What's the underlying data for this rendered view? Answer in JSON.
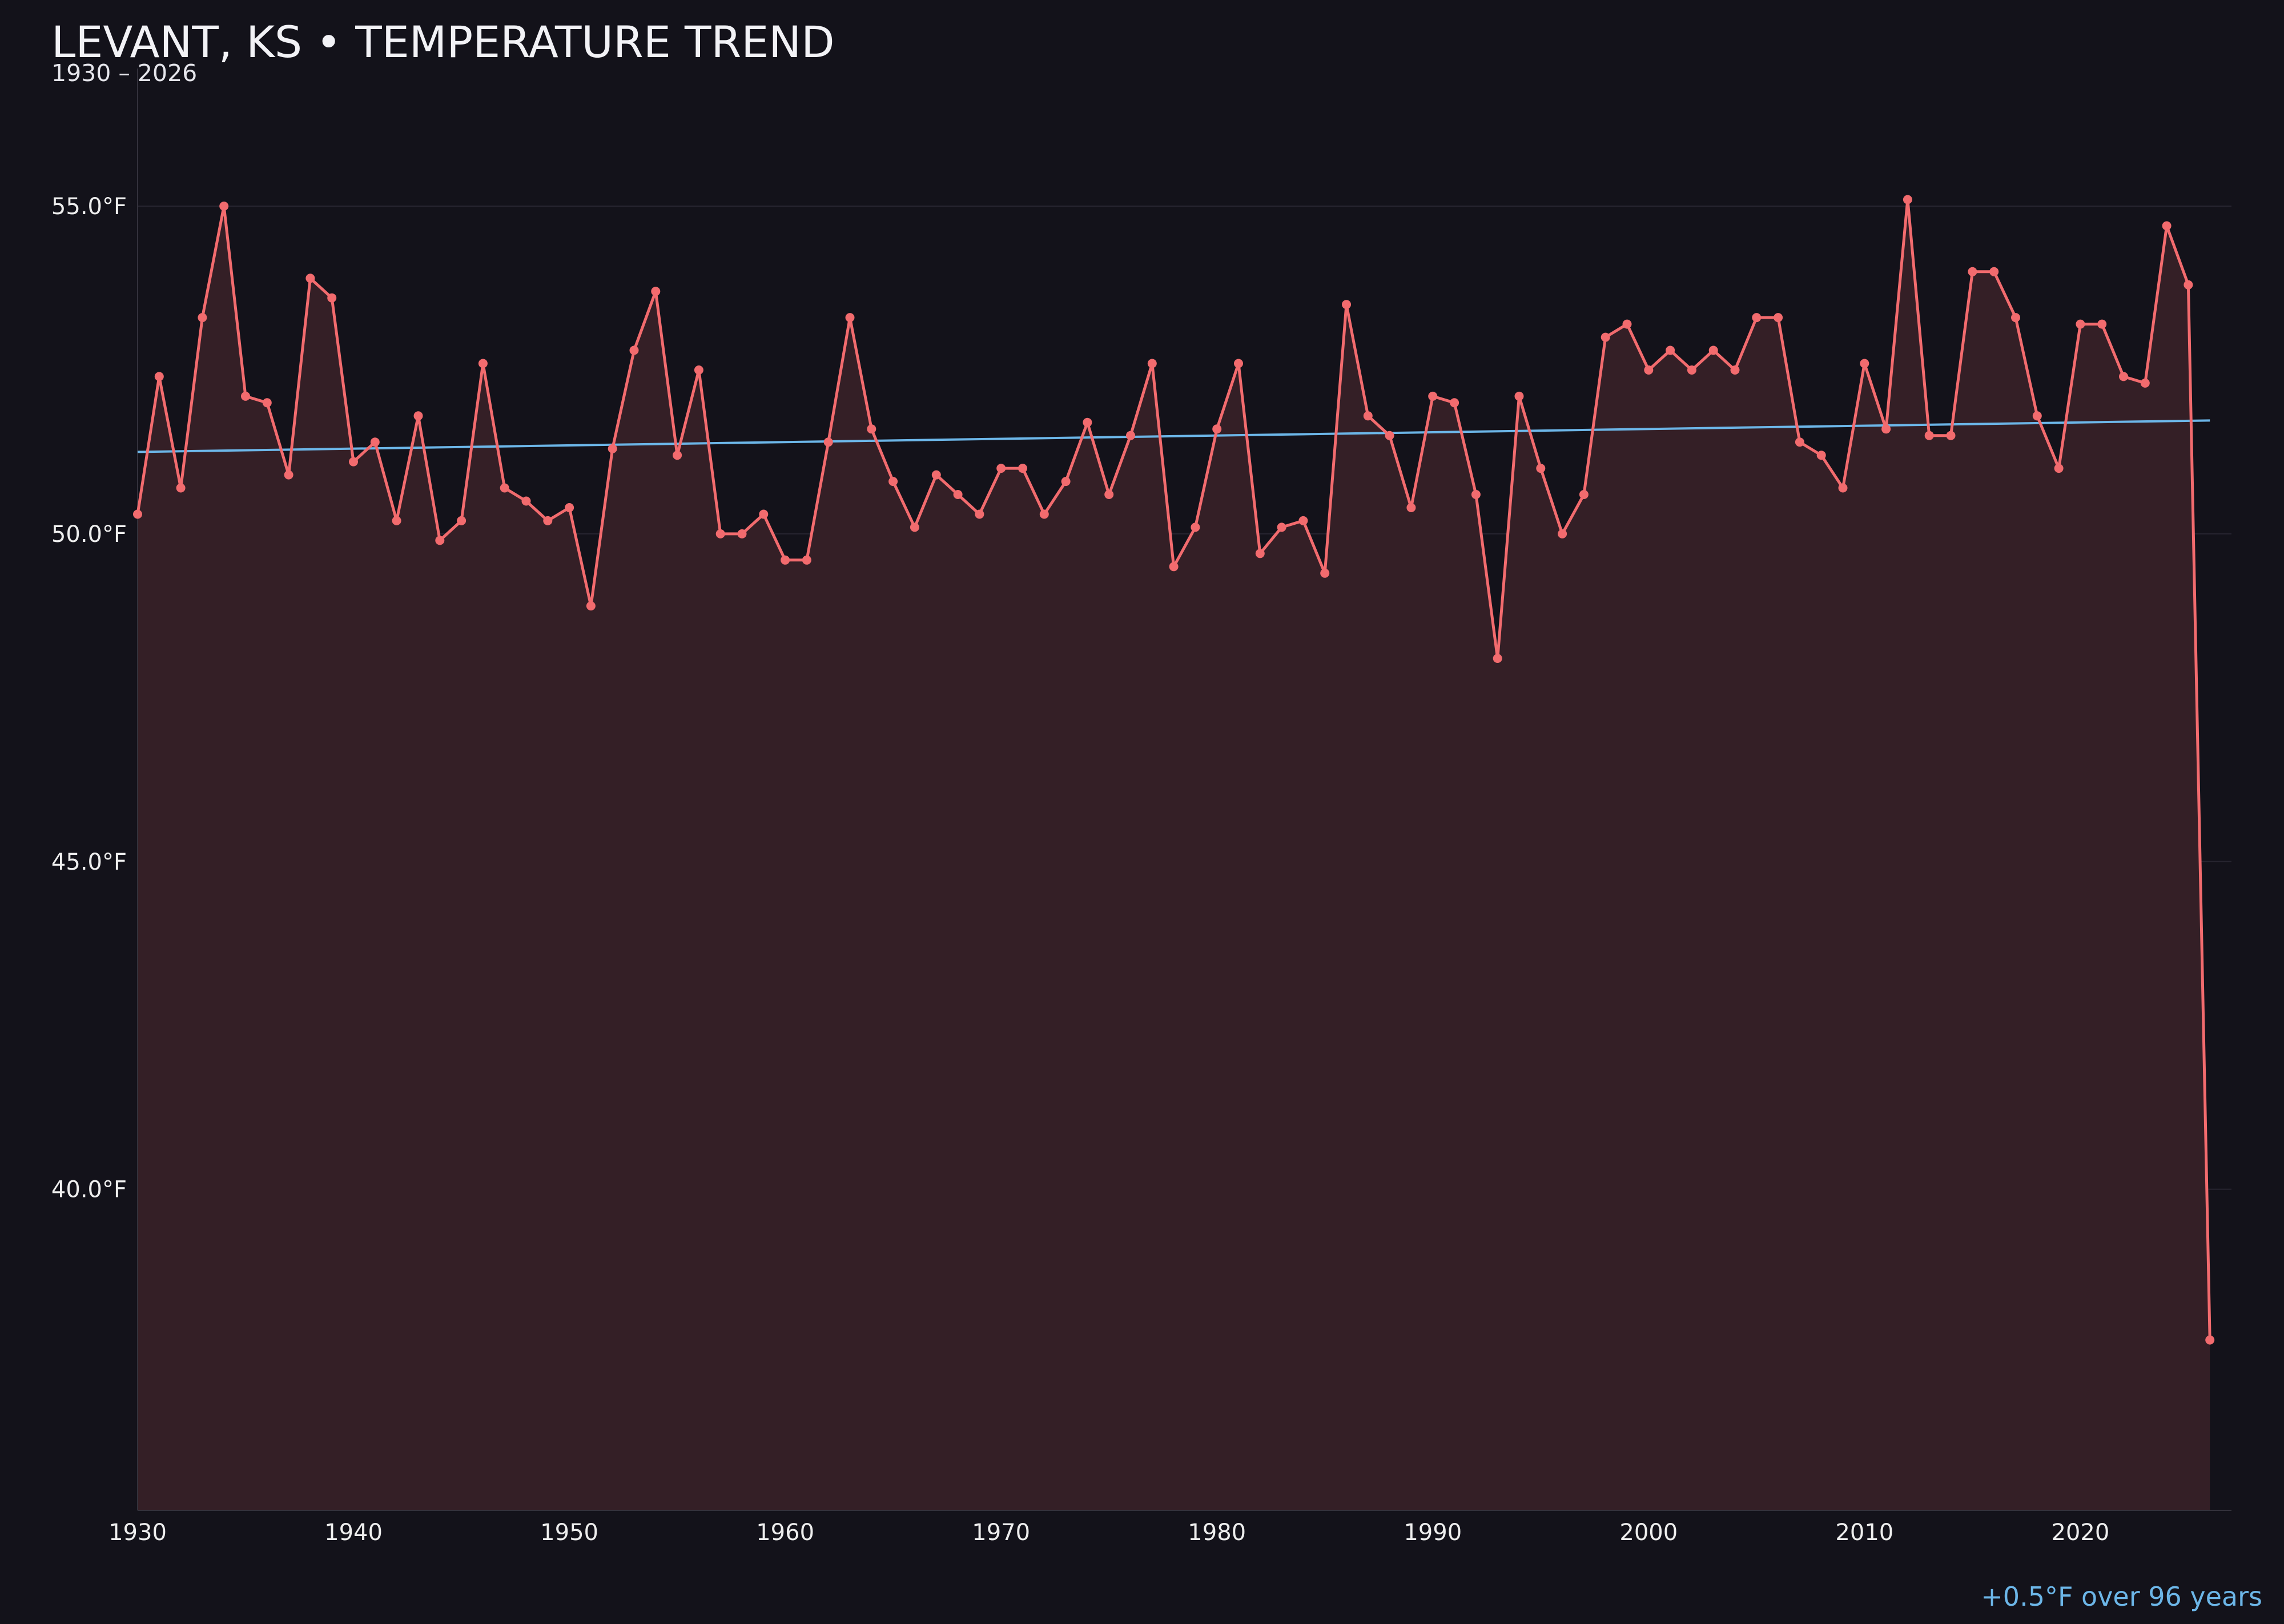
{
  "colors": {
    "background": "#13121a",
    "series": "#f26b6e",
    "area_fill": "#341f26",
    "trend": "#6cb6e8",
    "grid": "#272530",
    "text": "#eeeeee"
  },
  "chart_data": {
    "type": "line",
    "title": "LEVANT, KS • TEMPERATURE TREND",
    "subtitle": "1930 – 2026",
    "xlabel": "",
    "ylabel": "",
    "xlim": [
      1930,
      2027
    ],
    "ylim": [
      35.1,
      57.1
    ],
    "grid": true,
    "x_ticks": [
      1930,
      1940,
      1950,
      1960,
      1970,
      1980,
      1990,
      2000,
      2010,
      2020
    ],
    "y_ticks": [
      40,
      45,
      50,
      55
    ],
    "y_tick_labels": [
      "40.0°F",
      "45.0°F",
      "50.0°F",
      "55.0°F"
    ],
    "series": [
      {
        "x": [
          1930,
          1931,
          1932,
          1933,
          1934,
          1935,
          1936,
          1937,
          1938,
          1939,
          1940,
          1941,
          1942,
          1943,
          1944,
          1945,
          1946,
          1947,
          1948,
          1949,
          1950,
          1951,
          1952,
          1953,
          1954,
          1955,
          1956,
          1957,
          1958,
          1959,
          1960,
          1961,
          1962,
          1963,
          1964,
          1965,
          1966,
          1967,
          1968,
          1969,
          1970,
          1971,
          1972,
          1973,
          1974,
          1975,
          1976,
          1977,
          1978,
          1979,
          1980,
          1981,
          1982,
          1983,
          1984,
          1985,
          1986,
          1987,
          1988,
          1989,
          1990,
          1991,
          1992,
          1993,
          1994,
          1995,
          1996,
          1997,
          1998,
          1999,
          2000,
          2001,
          2002,
          2003,
          2004,
          2005,
          2006,
          2007,
          2008,
          2009,
          2010,
          2011,
          2012,
          2013,
          2014,
          2015,
          2016,
          2017,
          2018,
          2019,
          2020,
          2021,
          2022,
          2023,
          2024,
          2025,
          2026
        ],
        "values": [
          50.3,
          52.4,
          50.7,
          53.3,
          55.0,
          52.1,
          52.0,
          50.9,
          53.9,
          53.6,
          51.1,
          51.4,
          50.2,
          51.8,
          49.9,
          50.2,
          52.6,
          50.7,
          50.5,
          50.2,
          50.4,
          48.9,
          51.3,
          52.8,
          53.7,
          51.2,
          52.5,
          50.0,
          50.0,
          50.3,
          49.6,
          49.6,
          51.4,
          53.3,
          51.6,
          50.8,
          50.1,
          50.9,
          50.6,
          50.3,
          51.0,
          51.0,
          50.3,
          50.8,
          51.7,
          50.6,
          51.5,
          52.6,
          49.5,
          50.1,
          51.6,
          52.6,
          49.7,
          50.1,
          50.2,
          49.4,
          53.5,
          51.8,
          51.5,
          50.4,
          52.1,
          52.0,
          50.6,
          48.1,
          52.1,
          51.0,
          50.0,
          50.6,
          53.0,
          53.2,
          52.5,
          52.8,
          52.5,
          52.8,
          52.5,
          53.3,
          53.3,
          51.4,
          51.2,
          50.7,
          52.6,
          51.6,
          55.1,
          51.5,
          51.5,
          54.0,
          54.0,
          53.3,
          51.8,
          51.0,
          53.2,
          53.2,
          52.4,
          52.3,
          54.7,
          53.8,
          37.7
        ]
      }
    ],
    "trend": {
      "x": [
        1930,
        2026
      ],
      "values": [
        51.25,
        51.73
      ]
    },
    "annotation": "+0.5°F over 96 years"
  }
}
